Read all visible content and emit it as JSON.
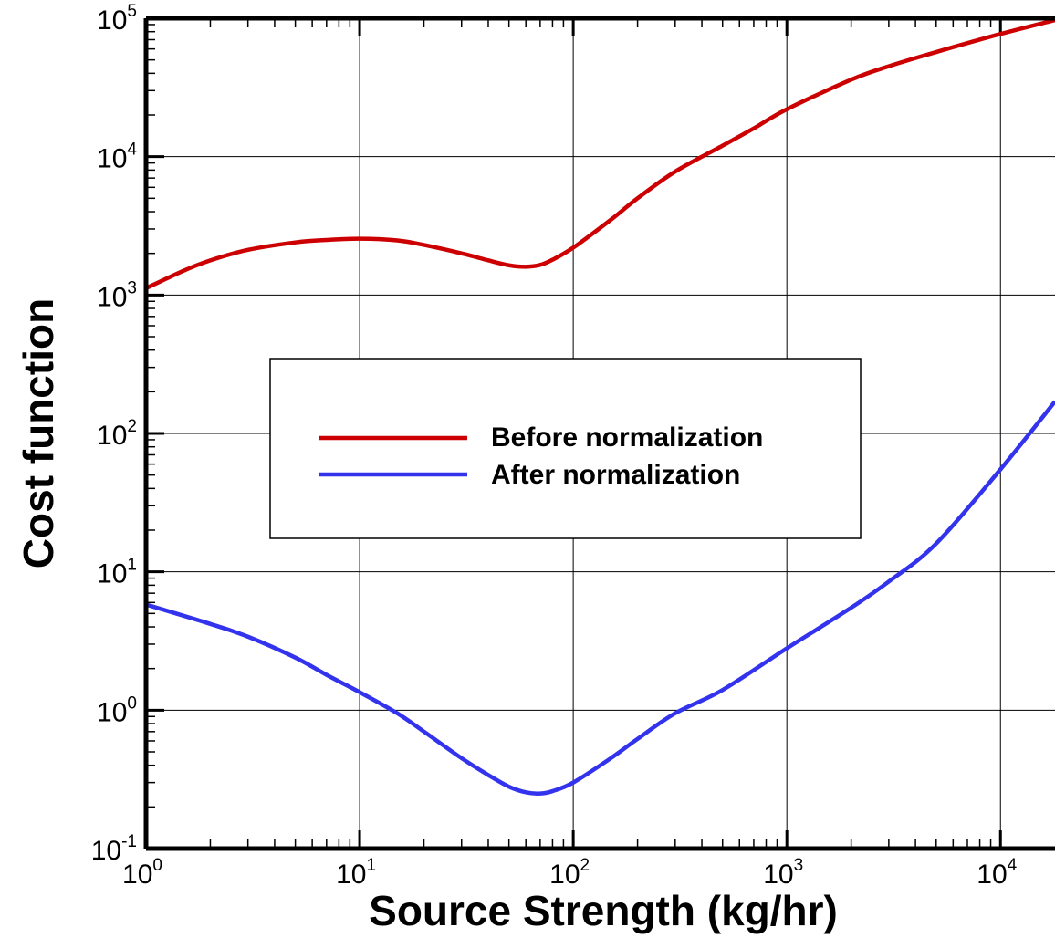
{
  "chart_data": {
    "type": "line",
    "xscale": "log",
    "yscale": "log",
    "xlim": [
      1,
      18000
    ],
    "ylim": [
      0.1,
      100000
    ],
    "grid": true,
    "legend_position": "center-left",
    "xlabel": "Source Strength (kg/hr)",
    "ylabel": "Cost function",
    "x_ticks": [
      {
        "base": "10",
        "exp": "0",
        "value": 1
      },
      {
        "base": "10",
        "exp": "1",
        "value": 10
      },
      {
        "base": "10",
        "exp": "2",
        "value": 100
      },
      {
        "base": "10",
        "exp": "3",
        "value": 1000
      },
      {
        "base": "10",
        "exp": "4",
        "value": 10000
      }
    ],
    "y_ticks": [
      {
        "base": "10",
        "exp": "-1",
        "value": 0.1
      },
      {
        "base": "10",
        "exp": "0",
        "value": 1
      },
      {
        "base": "10",
        "exp": "1",
        "value": 10
      },
      {
        "base": "10",
        "exp": "2",
        "value": 100
      },
      {
        "base": "10",
        "exp": "3",
        "value": 1000
      },
      {
        "base": "10",
        "exp": "4",
        "value": 10000
      },
      {
        "base": "10",
        "exp": "5",
        "value": 100000
      }
    ],
    "series": [
      {
        "name": "Before normalization",
        "color": "#cc0000",
        "points": [
          [
            1,
            1120
          ],
          [
            1.5,
            1500
          ],
          [
            2,
            1780
          ],
          [
            3,
            2120
          ],
          [
            5,
            2400
          ],
          [
            7,
            2500
          ],
          [
            10,
            2550
          ],
          [
            15,
            2480
          ],
          [
            20,
            2300
          ],
          [
            30,
            2000
          ],
          [
            40,
            1780
          ],
          [
            50,
            1640
          ],
          [
            60,
            1600
          ],
          [
            70,
            1650
          ],
          [
            80,
            1800
          ],
          [
            100,
            2200
          ],
          [
            150,
            3500
          ],
          [
            200,
            5000
          ],
          [
            300,
            7800
          ],
          [
            500,
            12000
          ],
          [
            700,
            16000
          ],
          [
            1000,
            22000
          ],
          [
            2000,
            36000
          ],
          [
            3000,
            45000
          ],
          [
            5000,
            57000
          ],
          [
            10000,
            77000
          ],
          [
            18000,
            97000
          ]
        ]
      },
      {
        "name": "After normalization",
        "color": "#3333ee",
        "points": [
          [
            1,
            5.8
          ],
          [
            2,
            4.2
          ],
          [
            3,
            3.4
          ],
          [
            5,
            2.4
          ],
          [
            7,
            1.8
          ],
          [
            10,
            1.35
          ],
          [
            15,
            0.95
          ],
          [
            20,
            0.7
          ],
          [
            30,
            0.45
          ],
          [
            40,
            0.34
          ],
          [
            50,
            0.28
          ],
          [
            60,
            0.255
          ],
          [
            70,
            0.25
          ],
          [
            80,
            0.26
          ],
          [
            100,
            0.3
          ],
          [
            150,
            0.45
          ],
          [
            200,
            0.62
          ],
          [
            300,
            0.95
          ],
          [
            500,
            1.4
          ],
          [
            1000,
            2.8
          ],
          [
            2000,
            5.5
          ],
          [
            3000,
            8.5
          ],
          [
            5000,
            16
          ],
          [
            10000,
            55
          ],
          [
            18000,
            170
          ]
        ]
      }
    ]
  }
}
